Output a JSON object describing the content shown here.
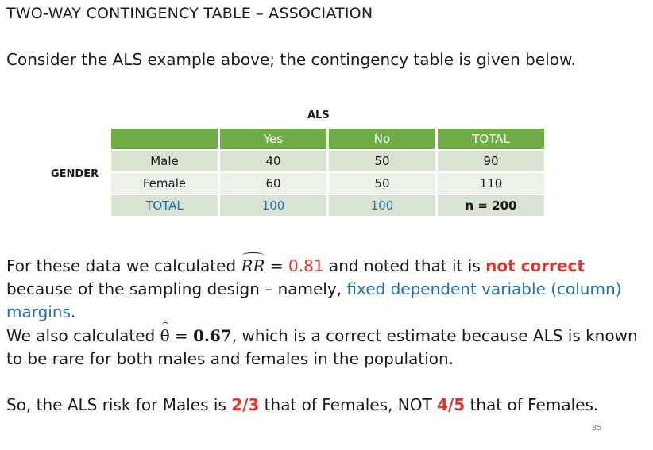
{
  "title": "TWO-WAY CONTINGENCY TABLE – ASSOCIATION",
  "intro": "Consider the ALS example above; the contingency table is given below.",
  "table": {
    "column_variable": "ALS",
    "row_variable": "GENDER",
    "header": [
      "",
      "Yes",
      "No",
      "TOTAL"
    ],
    "rows": [
      [
        "Male",
        "40",
        "50",
        "90"
      ],
      [
        "Female",
        "60",
        "50",
        "110"
      ],
      [
        "TOTAL",
        "100",
        "100",
        "n = 200"
      ]
    ]
  },
  "para1": {
    "part1": "For these data we calculated ",
    "rr_symbol": "RR",
    "part2": " = ",
    "rr_value": "0.81",
    "part3": " and noted that it is ",
    "not_correct": "not correct",
    "part4": " because of the sampling design – namely, ",
    "highlight": "fixed dependent variable (column) margins",
    "part5": "."
  },
  "para2": {
    "part1": "We also calculated ",
    "theta": "θ",
    "equals": " = ",
    "theta_value": "0.67",
    "part2": ", which is a correct estimate because ALS is known to be rare for both males and females in the population."
  },
  "para3": {
    "part1": "So, the ALS risk for Males is ",
    "ratio1": "2/3",
    "part2": " that of Females, NOT ",
    "ratio2": "4/5",
    "part3": " that of Females."
  },
  "page_number": "35",
  "colors": {
    "header_green": "#70ad47",
    "row_band_dark": "#d9e3d1",
    "row_band_light": "#edf2e9",
    "blue_text": "#1f6fb7",
    "red_text": "#e4312b"
  }
}
